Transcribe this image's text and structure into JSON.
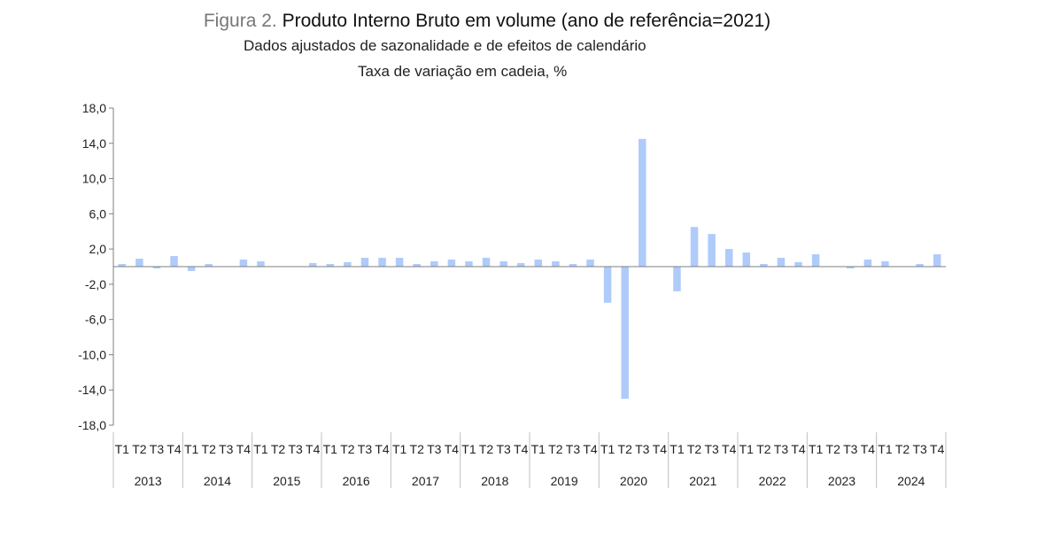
{
  "chart_data": {
    "type": "bar",
    "title_prefix": "Figura 2.",
    "title": "Produto Interno Bruto em volume (ano de referência=2021)",
    "subtitle": "Dados ajustados de sazonalidade e de efeitos de calendário",
    "ylabel": "Taxa de variação em cadeia, %",
    "ylim": [
      -18,
      18
    ],
    "y_ticks": [
      {
        "value": 18,
        "label": "18,0"
      },
      {
        "value": 14,
        "label": "14,0"
      },
      {
        "value": 10,
        "label": "10,0"
      },
      {
        "value": 6,
        "label": "6,0"
      },
      {
        "value": 2,
        "label": "2,0"
      },
      {
        "value": -2,
        "label": "-2,0"
      },
      {
        "value": -6,
        "label": "-6,0"
      },
      {
        "value": -10,
        "label": "-10,0"
      },
      {
        "value": -14,
        "label": "-14,0"
      },
      {
        "value": -18,
        "label": "-18,0"
      }
    ],
    "quarters": [
      "T1",
      "T2",
      "T3",
      "T4"
    ],
    "years": [
      "2013",
      "2014",
      "2015",
      "2016",
      "2017",
      "2018",
      "2019",
      "2020",
      "2021",
      "2022",
      "2023",
      "2024"
    ],
    "values": [
      0.3,
      0.9,
      -0.2,
      1.2,
      -0.5,
      0.3,
      0.0,
      0.8,
      0.6,
      0.0,
      0.0,
      0.4,
      0.3,
      0.5,
      1.0,
      1.0,
      1.0,
      0.3,
      0.6,
      0.8,
      0.6,
      1.0,
      0.6,
      0.4,
      0.8,
      0.6,
      0.3,
      0.8,
      -4.1,
      -15.0,
      14.5,
      0.0,
      -2.8,
      4.5,
      3.7,
      2.0,
      1.6,
      0.3,
      1.0,
      0.5,
      1.4,
      0.0,
      -0.2,
      0.8,
      0.6,
      0.0,
      0.3,
      1.4
    ],
    "colors": {
      "bar": "#aecbfa",
      "axis": "#7f7f7f",
      "text": "#222222"
    },
    "grid": false,
    "legend": "none"
  }
}
